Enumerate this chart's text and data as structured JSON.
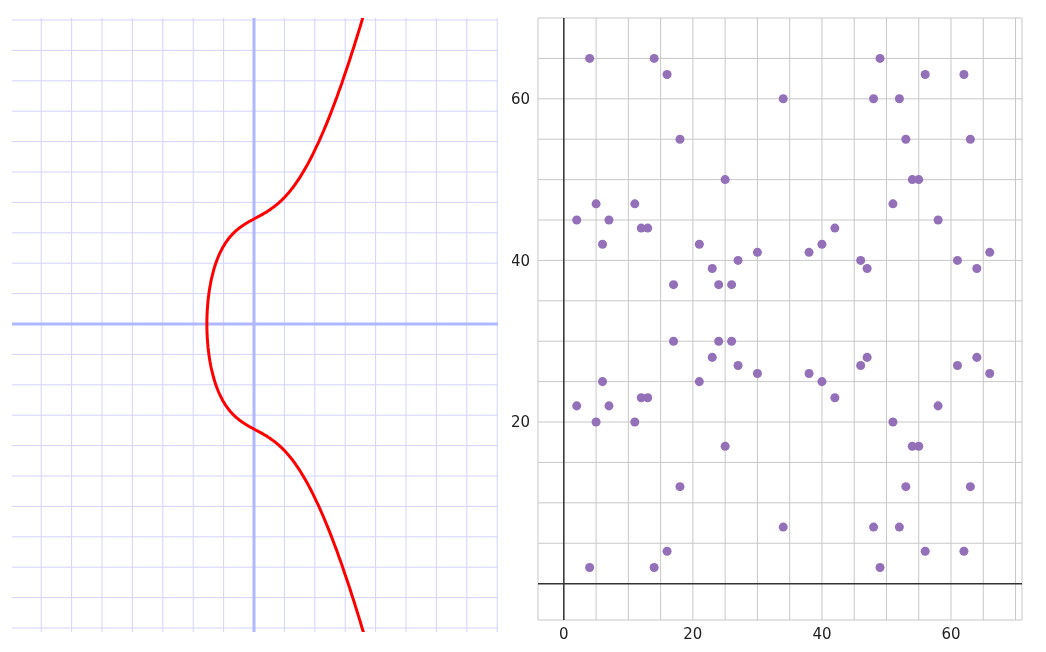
{
  "chart_data": {
    "type": "scatter",
    "grid": true,
    "marker": "circle",
    "xlim": [
      -4,
      71
    ],
    "ylim": [
      -4.5,
      70
    ],
    "xticks": [
      0,
      {
        "value": 5,
        "label": null
      },
      {
        "value": 10,
        "label": null
      },
      {
        "value": 15,
        "label": null
      },
      20,
      {
        "value": 25,
        "label": null
      },
      {
        "value": 30,
        "label": null
      },
      {
        "value": 35,
        "label": null
      },
      40,
      {
        "value": 45,
        "label": null
      },
      {
        "value": 50,
        "label": null
      },
      {
        "value": 55,
        "label": null
      },
      60,
      {
        "value": 65,
        "label": null
      },
      {
        "value": 70,
        "label": null
      }
    ],
    "yticks": [
      {
        "value": 5,
        "label": null
      },
      {
        "value": 10,
        "label": null
      },
      {
        "value": 15,
        "label": null
      },
      20,
      {
        "value": 25,
        "label": null
      },
      {
        "value": 30,
        "label": null
      },
      {
        "value": 35,
        "label": null
      },
      40,
      {
        "value": 45,
        "label": null
      },
      {
        "value": 50,
        "label": null
      },
      {
        "value": 55,
        "label": null
      },
      60,
      {
        "value": 65,
        "label": null
      }
    ],
    "series": [
      {
        "color": "#9370b8",
        "x": [
          4,
          4,
          2,
          2,
          5,
          5,
          6,
          6,
          7,
          7,
          11,
          11,
          12,
          12,
          13,
          13,
          14,
          14,
          16,
          16,
          17,
          17,
          18,
          18,
          21,
          21,
          23,
          23,
          24,
          24,
          25,
          25,
          26,
          26,
          27,
          27,
          30,
          30,
          34,
          34,
          38,
          38,
          40,
          40,
          42,
          42,
          46,
          46,
          47,
          47,
          48,
          48,
          49,
          49,
          51,
          51,
          52,
          52,
          53,
          53,
          54,
          54,
          55,
          55,
          56,
          56,
          58,
          58,
          61,
          61,
          62,
          62,
          63,
          63,
          64,
          64,
          66,
          66
        ],
        "values": [
          65,
          2,
          45,
          22,
          47,
          20,
          42,
          25,
          45,
          22,
          47,
          20,
          44,
          23,
          44,
          23,
          65,
          2,
          63,
          4,
          37,
          30,
          55,
          12,
          42,
          25,
          39,
          28,
          37,
          30,
          50,
          17,
          37,
          30,
          40,
          27,
          41,
          26,
          60,
          7,
          41,
          26,
          42,
          25,
          44,
          23,
          40,
          27,
          39,
          28,
          60,
          7,
          65,
          2,
          47,
          20,
          60,
          7,
          55,
          12,
          50,
          17,
          50,
          17,
          63,
          4,
          45,
          22,
          40,
          27,
          63,
          4,
          55,
          12,
          39,
          28,
          41,
          26
        ]
      }
    ]
  }
}
